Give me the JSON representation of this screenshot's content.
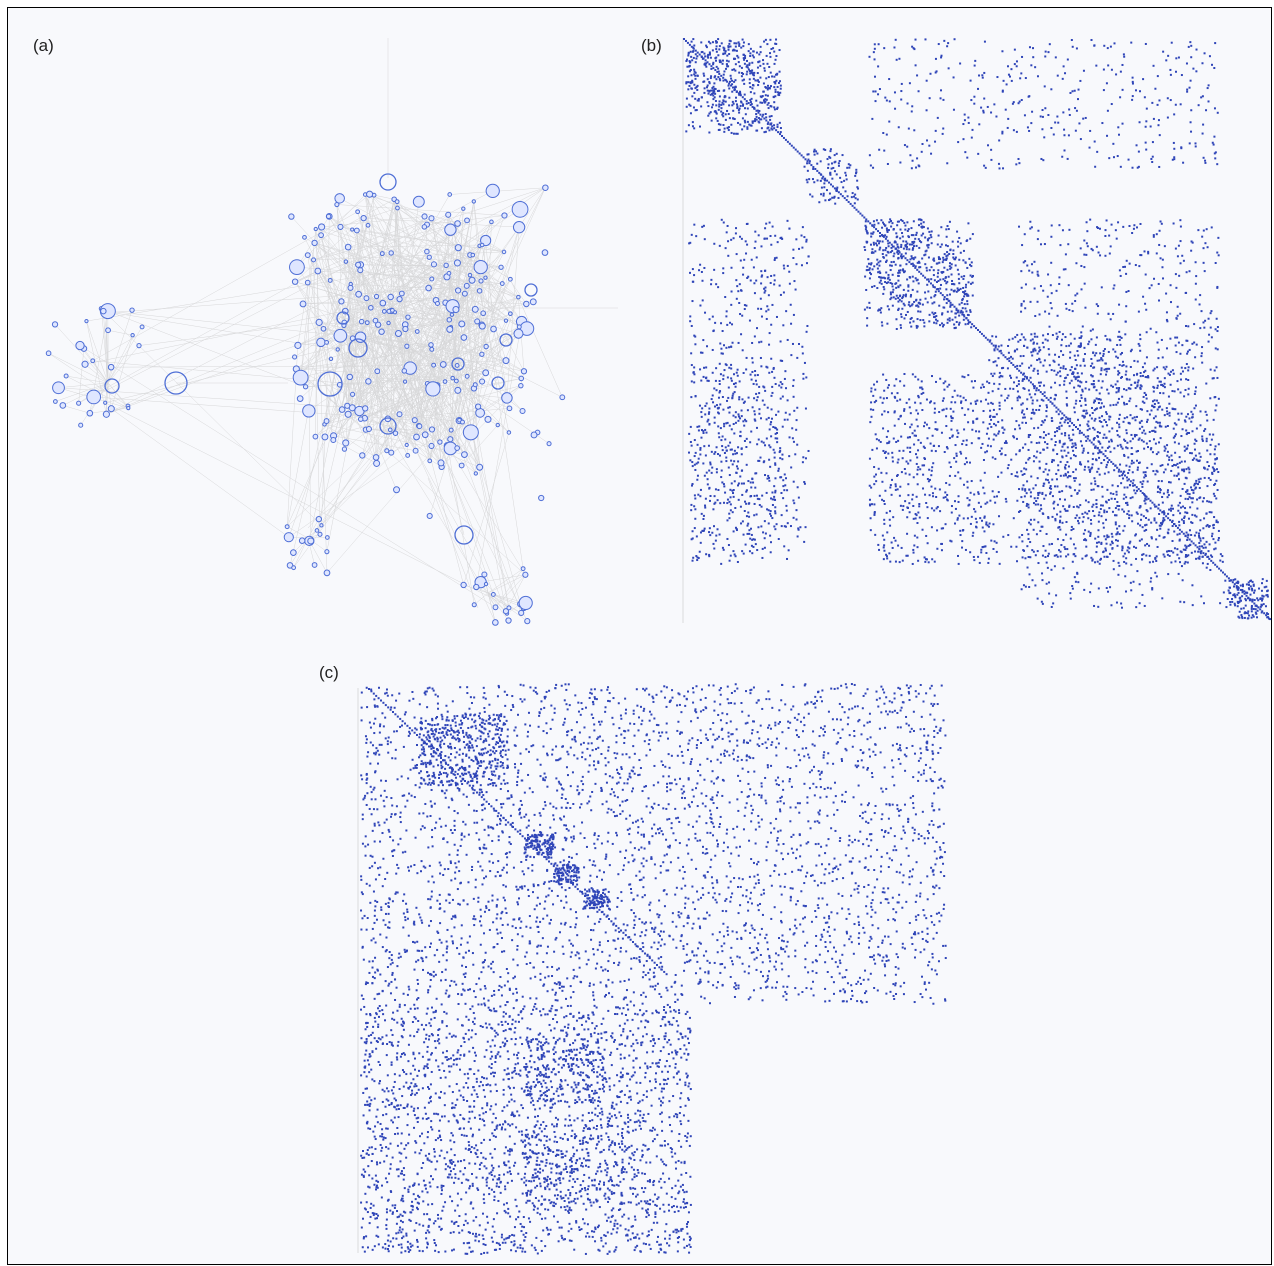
{
  "figure": {
    "panels": [
      {
        "id": "a",
        "label": "(a)",
        "kind": "node-link network"
      },
      {
        "id": "b",
        "label": "(b)",
        "kind": "adjacency matrix"
      },
      {
        "id": "c",
        "label": "(c)",
        "kind": "adjacency matrix"
      }
    ]
  },
  "colors": {
    "node": "#4f6fd6",
    "node_fill": "#dfe6ff",
    "edge": "#bcbcbc",
    "matrix_dot": "#2f45b8",
    "background": "#f8f9fc"
  }
}
